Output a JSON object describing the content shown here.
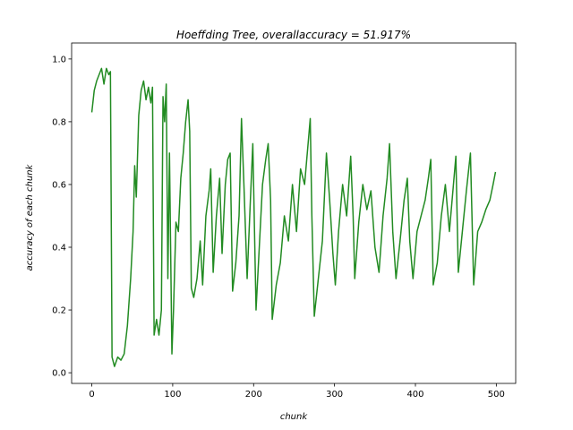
{
  "chart_data": {
    "type": "line",
    "title": "Hoeffding Tree, overallaccuracy = 51.917%",
    "xlabel": "chunk",
    "ylabel": "accuracy of each chunk",
    "xlim": [
      -24.95,
      523.95
    ],
    "ylim": [
      -0.034,
      1.051
    ],
    "xticks": [
      0,
      100,
      200,
      300,
      400,
      500
    ],
    "yticks": [
      {
        "value": 0,
        "label": "0.0"
      },
      0.2,
      0.4,
      0.6,
      0.8,
      {
        "value": 1,
        "label": "1.0"
      }
    ],
    "grid": false,
    "series": [
      {
        "color": "#228b22",
        "x": [
          0,
          3,
          6,
          9,
          12,
          15,
          18,
          21,
          23,
          25,
          28,
          32,
          36,
          40,
          44,
          48,
          51,
          53,
          55,
          58,
          61,
          64,
          67,
          70,
          73,
          75,
          77,
          80,
          83,
          86,
          88,
          90,
          92,
          94,
          96,
          99,
          101,
          104,
          107,
          110,
          113,
          116,
          119,
          121,
          123,
          126,
          130,
          134,
          137,
          141,
          145,
          147,
          150,
          154,
          158,
          161,
          165,
          168,
          171,
          174,
          178,
          182,
          185,
          188,
          192,
          196,
          199,
          203,
          207,
          211,
          215,
          218,
          221,
          223,
          228,
          233,
          238,
          243,
          248,
          253,
          258,
          263,
          268,
          270,
          272,
          275,
          280,
          285,
          290,
          294,
          298,
          301,
          305,
          310,
          315,
          320,
          323,
          325,
          330,
          335,
          340,
          345,
          350,
          355,
          360,
          365,
          368,
          372,
          376,
          381,
          386,
          390,
          393,
          397,
          402,
          407,
          412,
          416,
          419,
          422,
          427,
          432,
          437,
          442,
          447,
          450,
          453,
          458,
          463,
          468,
          472,
          477,
          482,
          487,
          492,
          496,
          499
        ],
        "values": [
          0.83,
          0.9,
          0.93,
          0.95,
          0.97,
          0.92,
          0.97,
          0.95,
          0.96,
          0.05,
          0.02,
          0.05,
          0.04,
          0.06,
          0.15,
          0.3,
          0.45,
          0.66,
          0.56,
          0.82,
          0.9,
          0.93,
          0.87,
          0.91,
          0.86,
          0.91,
          0.12,
          0.17,
          0.12,
          0.2,
          0.88,
          0.8,
          0.92,
          0.3,
          0.7,
          0.06,
          0.2,
          0.48,
          0.45,
          0.62,
          0.7,
          0.8,
          0.87,
          0.77,
          0.27,
          0.24,
          0.3,
          0.42,
          0.28,
          0.5,
          0.58,
          0.65,
          0.32,
          0.5,
          0.62,
          0.38,
          0.6,
          0.68,
          0.7,
          0.26,
          0.35,
          0.5,
          0.81,
          0.6,
          0.3,
          0.55,
          0.73,
          0.2,
          0.4,
          0.6,
          0.68,
          0.73,
          0.55,
          0.17,
          0.28,
          0.35,
          0.5,
          0.42,
          0.6,
          0.45,
          0.65,
          0.6,
          0.75,
          0.81,
          0.5,
          0.18,
          0.3,
          0.42,
          0.7,
          0.55,
          0.38,
          0.28,
          0.45,
          0.6,
          0.5,
          0.69,
          0.5,
          0.3,
          0.48,
          0.6,
          0.52,
          0.58,
          0.4,
          0.32,
          0.5,
          0.62,
          0.73,
          0.45,
          0.3,
          0.42,
          0.55,
          0.62,
          0.42,
          0.3,
          0.45,
          0.5,
          0.55,
          0.62,
          0.68,
          0.28,
          0.35,
          0.5,
          0.6,
          0.45,
          0.6,
          0.69,
          0.32,
          0.45,
          0.58,
          0.7,
          0.28,
          0.45,
          0.48,
          0.52,
          0.55,
          0.6,
          0.64
        ]
      }
    ]
  }
}
